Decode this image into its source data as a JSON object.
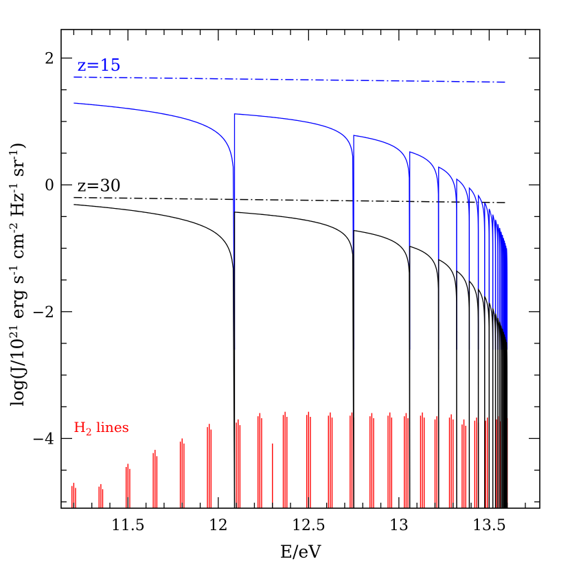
{
  "chart_data": {
    "type": "line",
    "xlabel": "E/eV",
    "ylabel_parts": [
      "log(J/10",
      "21",
      " erg s",
      "-1",
      " cm",
      "-2",
      " Hz",
      "-1",
      " sr",
      "-1",
      ")"
    ],
    "xlim": [
      11.13,
      13.78
    ],
    "ylim": [
      -5.1,
      2.45
    ],
    "xticks": [
      11.5,
      12,
      12.5,
      13,
      13.5
    ],
    "xtick_labels": [
      "11.5",
      "12",
      "12.5",
      "13",
      "13.5"
    ],
    "yticks": [
      -4,
      -2,
      0,
      2
    ],
    "ytick_labels": [
      "−4",
      "−2",
      "0",
      "2"
    ],
    "lyman_edges": [
      12.09,
      12.75,
      13.06,
      13.22,
      13.32,
      13.39,
      13.44,
      13.475,
      13.5,
      13.52,
      13.535,
      13.548,
      13.558,
      13.566,
      13.573,
      13.579,
      13.584,
      13.588,
      13.592,
      13.596,
      13.599
    ],
    "x_start": 11.2,
    "x_end": 13.6,
    "series": [
      {
        "name": "z=15",
        "color": "#0000ff",
        "style": "dashdot",
        "x": [
          11.2,
          13.6
        ],
        "y": [
          1.7,
          1.62
        ]
      },
      {
        "name": "z=30",
        "color": "#000000",
        "style": "dashdot",
        "x": [
          11.2,
          13.6
        ],
        "y": [
          -0.2,
          -0.28
        ]
      },
      {
        "name": "z=15",
        "color": "#0000ff",
        "style": "solid",
        "segment_start_y": [
          1.29,
          1.12,
          0.78,
          0.52,
          0.28,
          0.09,
          -0.05,
          -0.17,
          -0.28,
          -0.38,
          -0.47,
          -0.55,
          -0.62,
          -0.68,
          -0.74,
          -0.79,
          -0.84,
          -0.88,
          -0.92,
          -0.96,
          -1.0
        ],
        "edge_floor_y": -2.6
      },
      {
        "name": "z=30",
        "color": "#000000",
        "style": "solid",
        "segment_start_y": [
          -0.31,
          -0.43,
          -0.72,
          -0.97,
          -1.18,
          -1.36,
          -1.52,
          -1.65,
          -1.76,
          -1.86,
          -1.95,
          -2.03,
          -2.1,
          -2.16,
          -2.22,
          -2.27,
          -2.32,
          -2.36,
          -2.4,
          -2.44,
          -2.48
        ],
        "edge_floor_y": -5.1
      }
    ],
    "h2_lines": {
      "color": "#ff0000",
      "x": [
        11.19,
        11.2,
        11.21,
        11.34,
        11.35,
        11.36,
        11.49,
        11.5,
        11.51,
        11.64,
        11.65,
        11.66,
        11.79,
        11.8,
        11.81,
        11.94,
        11.95,
        11.96,
        12.1,
        12.11,
        12.12,
        12.22,
        12.23,
        12.24,
        12.3,
        12.36,
        12.37,
        12.38,
        12.49,
        12.5,
        12.51,
        12.61,
        12.62,
        12.63,
        12.73,
        12.74,
        12.75,
        12.84,
        12.85,
        12.86,
        12.94,
        12.95,
        12.96,
        13.03,
        13.04,
        13.05,
        13.12,
        13.13,
        13.14,
        13.2,
        13.21,
        13.22,
        13.28,
        13.29,
        13.3,
        13.35,
        13.36,
        13.37,
        13.42,
        13.43,
        13.44,
        13.48,
        13.49,
        13.5,
        13.54,
        13.55,
        13.56,
        13.59,
        13.6
      ],
      "y_top": [
        -4.75,
        -4.7,
        -4.78,
        -4.76,
        -4.72,
        -4.8,
        -4.45,
        -4.4,
        -4.48,
        -4.23,
        -4.18,
        -4.28,
        -4.05,
        -4.0,
        -4.08,
        -3.82,
        -3.77,
        -3.86,
        -3.75,
        -3.7,
        -3.79,
        -3.65,
        -3.6,
        -3.68,
        -4.08,
        -3.63,
        -3.58,
        -3.66,
        -3.63,
        -3.58,
        -3.66,
        -3.64,
        -3.59,
        -3.67,
        -3.64,
        -3.59,
        -3.67,
        -3.65,
        -3.6,
        -3.68,
        -3.64,
        -3.59,
        -3.67,
        -3.65,
        -3.6,
        -3.68,
        -3.64,
        -3.59,
        -3.67,
        -3.7,
        -3.65,
        -3.73,
        -3.67,
        -3.62,
        -3.7,
        -3.78,
        -3.7,
        -3.8,
        -3.72,
        -3.67,
        -3.75,
        -3.72,
        -3.67,
        -3.75,
        -3.7,
        -3.65,
        -3.73,
        -3.72,
        -3.68
      ]
    },
    "annotations": {
      "z15_label": "z=15",
      "z30_label": "z=30",
      "h2_label_main": "H",
      "h2_label_sub": "2",
      "h2_label_rest": " lines"
    }
  }
}
